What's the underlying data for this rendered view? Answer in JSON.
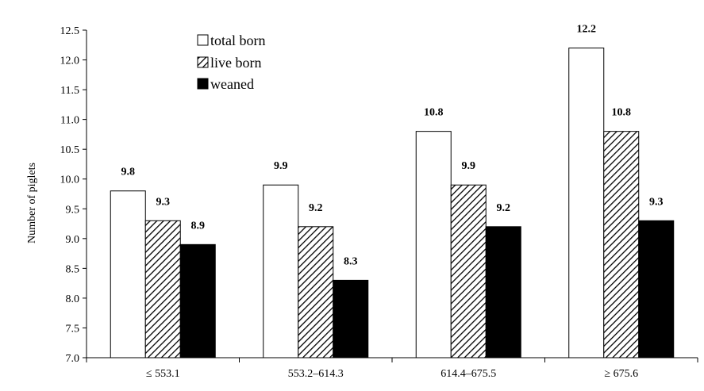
{
  "chart_data": {
    "type": "bar",
    "title": "",
    "xlabel": "",
    "ylabel": "Number of piglets",
    "categories": [
      "≤ 553.1",
      "553.2–614.3",
      "614.4–675.5",
      "≥ 675.6"
    ],
    "series": [
      {
        "name": "total born",
        "values": [
          9.8,
          9.9,
          10.8,
          12.2
        ],
        "labels": [
          "9.8",
          "9.9",
          "10.8",
          "12.2"
        ],
        "fill": "white"
      },
      {
        "name": "live born",
        "values": [
          9.3,
          9.2,
          9.9,
          10.8
        ],
        "labels": [
          "9.3",
          "9.2",
          "9.9",
          "10.8"
        ],
        "fill": "hatched"
      },
      {
        "name": "weaned",
        "values": [
          8.9,
          8.3,
          9.2,
          9.3
        ],
        "labels": [
          "8.9",
          "8.3",
          "9.2",
          "9.3"
        ],
        "fill": "black"
      }
    ],
    "ylim": [
      7.0,
      12.5
    ],
    "yticks": [
      "7.0",
      "7.5",
      "8.0",
      "8.5",
      "9.0",
      "9.5",
      "10.0",
      "10.5",
      "11.0",
      "11.5",
      "12.0",
      "12.5"
    ],
    "grid": false,
    "legend_position": "top-left"
  }
}
